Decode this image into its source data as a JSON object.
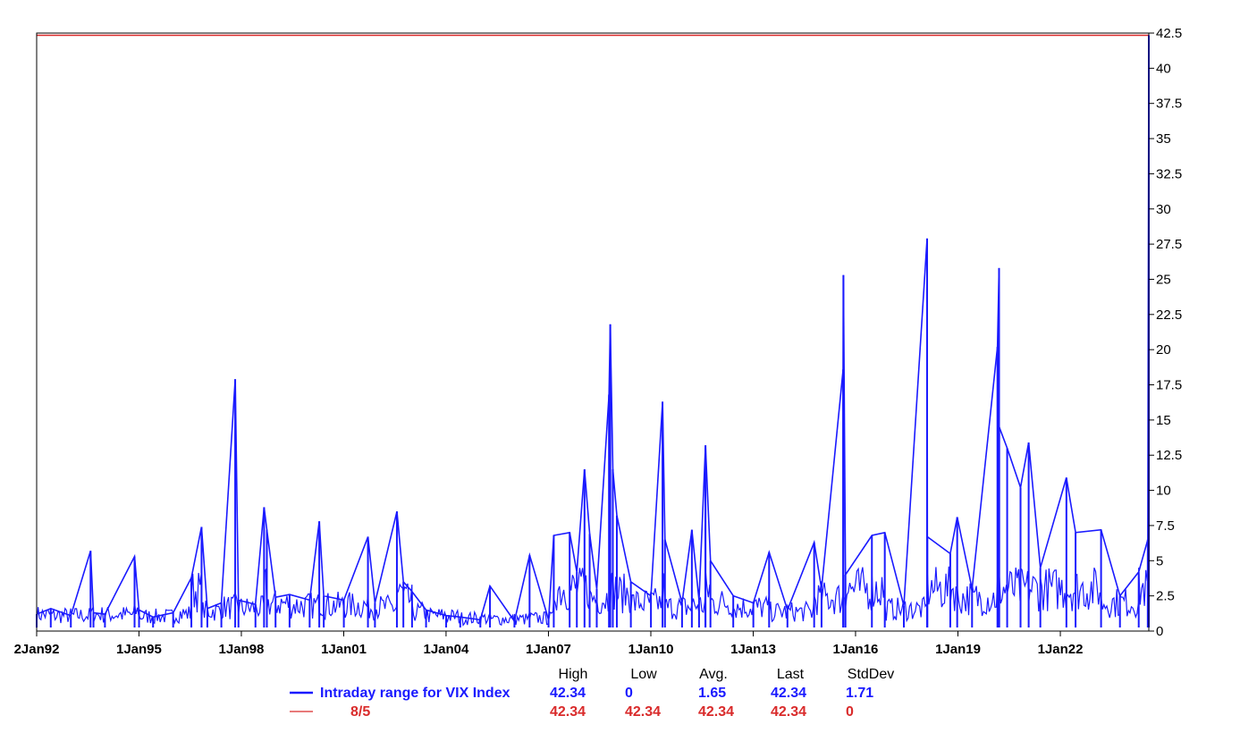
{
  "chart_data": {
    "type": "line",
    "title": "",
    "xlabel": "",
    "ylabel": "",
    "x_range": [
      "1992-01-02",
      "2024-08-05"
    ],
    "ylim": [
      0,
      42.5
    ],
    "y_axis_position": "right",
    "grid": false,
    "x_ticks": [
      "2Jan92",
      "1Jan95",
      "1Jan98",
      "1Jan01",
      "1Jan04",
      "1Jan07",
      "1Jan10",
      "1Jan13",
      "1Jan16",
      "1Jan19",
      "1Jan22"
    ],
    "y_ticks": [
      "0",
      "2.5",
      "5",
      "7.5",
      "10",
      "12.5",
      "15",
      "17.5",
      "20",
      "22.5",
      "25",
      "27.5",
      "30",
      "32.5",
      "35",
      "37.5",
      "40",
      "42.5"
    ],
    "series": [
      {
        "name": "Intraday range for VIX Index",
        "color": "#1a1aff",
        "points": [
          [
            "1992-01-02",
            1.2
          ],
          [
            "1992-06-01",
            1.6
          ],
          [
            "1993-01-02",
            1.1
          ],
          [
            "1993-08-01",
            5.7
          ],
          [
            "1993-09-01",
            1.3
          ],
          [
            "1994-01-02",
            1.2
          ],
          [
            "1994-11-15",
            5.3
          ],
          [
            "1995-01-02",
            1.5
          ],
          [
            "1995-06-01",
            1.0
          ],
          [
            "1996-01-02",
            1.3
          ],
          [
            "1996-07-15",
            3.8
          ],
          [
            "1996-11-01",
            7.4
          ],
          [
            "1997-01-02",
            1.6
          ],
          [
            "1997-06-01",
            2.0
          ],
          [
            "1997-10-27",
            17.9
          ],
          [
            "1997-12-01",
            2.2
          ],
          [
            "1998-06-01",
            1.9
          ],
          [
            "1998-09-01",
            8.8
          ],
          [
            "1998-10-01",
            7.2
          ],
          [
            "1999-01-02",
            2.4
          ],
          [
            "1999-06-01",
            2.6
          ],
          [
            "2000-01-02",
            2.2
          ],
          [
            "2000-04-14",
            7.8
          ],
          [
            "2000-06-01",
            2.5
          ],
          [
            "2001-01-02",
            2.2
          ],
          [
            "2001-09-17",
            6.7
          ],
          [
            "2001-12-01",
            2.0
          ],
          [
            "2002-07-24",
            8.5
          ],
          [
            "2002-10-01",
            3.5
          ],
          [
            "2003-01-02",
            2.8
          ],
          [
            "2003-06-01",
            1.5
          ],
          [
            "2004-01-02",
            1.1
          ],
          [
            "2004-06-01",
            1.0
          ],
          [
            "2005-01-02",
            0.8
          ],
          [
            "2005-04-15",
            3.2
          ],
          [
            "2006-01-02",
            0.7
          ],
          [
            "2006-06-13",
            5.4
          ],
          [
            "2007-01-02",
            0.8
          ],
          [
            "2007-02-27",
            6.8
          ],
          [
            "2007-08-16",
            7.0
          ],
          [
            "2007-11-01",
            4.2
          ],
          [
            "2008-01-22",
            11.5
          ],
          [
            "2008-03-17",
            6.9
          ],
          [
            "2008-06-01",
            3.0
          ],
          [
            "2008-10-10",
            16.8
          ],
          [
            "2008-10-24",
            21.8
          ],
          [
            "2008-11-20",
            11.5
          ],
          [
            "2009-01-02",
            8.2
          ],
          [
            "2009-06-01",
            3.5
          ],
          [
            "2010-01-02",
            2.5
          ],
          [
            "2010-05-06",
            16.3
          ],
          [
            "2010-06-01",
            6.5
          ],
          [
            "2010-12-01",
            2.0
          ],
          [
            "2011-03-16",
            7.2
          ],
          [
            "2011-06-01",
            2.2
          ],
          [
            "2011-08-08",
            13.0
          ],
          [
            "2011-08-09",
            13.2
          ],
          [
            "2011-10-01",
            5.0
          ],
          [
            "2012-06-01",
            2.5
          ],
          [
            "2013-01-02",
            2.0
          ],
          [
            "2013-06-20",
            5.6
          ],
          [
            "2014-01-02",
            1.5
          ],
          [
            "2014-10-15",
            6.3
          ],
          [
            "2015-01-02",
            3.0
          ],
          [
            "2015-08-21",
            18.6
          ],
          [
            "2015-08-24",
            25.3
          ],
          [
            "2015-09-15",
            4.0
          ],
          [
            "2016-06-24",
            6.8
          ],
          [
            "2016-11-09",
            7.0
          ],
          [
            "2017-06-01",
            1.8
          ],
          [
            "2018-02-05",
            27.9
          ],
          [
            "2018-02-08",
            6.7
          ],
          [
            "2018-10-11",
            5.5
          ],
          [
            "2018-12-24",
            8.1
          ],
          [
            "2019-06-01",
            3.0
          ],
          [
            "2020-02-28",
            20.2
          ],
          [
            "2020-03-16",
            25.8
          ],
          [
            "2020-03-18",
            14.5
          ],
          [
            "2020-06-11",
            13.0
          ],
          [
            "2020-11-01",
            10.2
          ],
          [
            "2021-01-27",
            13.4
          ],
          [
            "2021-06-01",
            4.5
          ],
          [
            "2022-03-07",
            10.9
          ],
          [
            "2022-06-13",
            7.0
          ],
          [
            "2023-03-13",
            7.2
          ],
          [
            "2023-10-01",
            2.5
          ],
          [
            "2024-04-19",
            4.2
          ],
          [
            "2024-07-25",
            6.5
          ],
          [
            "2024-08-05",
            42.34
          ]
        ]
      },
      {
        "name": "8/5",
        "color": "#d92b2b",
        "constant_value": 42.34
      }
    ],
    "stats": {
      "headers": [
        "High",
        "Low",
        "Avg.",
        "Last",
        "StdDev"
      ],
      "rows": [
        {
          "label": "Intraday range for VIX Index",
          "color": "#1a1aff",
          "values": [
            "42.34",
            "0",
            "1.65",
            "42.34",
            "1.71"
          ]
        },
        {
          "label": "8/5",
          "color": "#d92b2b",
          "values": [
            "42.34",
            "42.34",
            "42.34",
            "42.34",
            "0"
          ]
        }
      ]
    }
  }
}
